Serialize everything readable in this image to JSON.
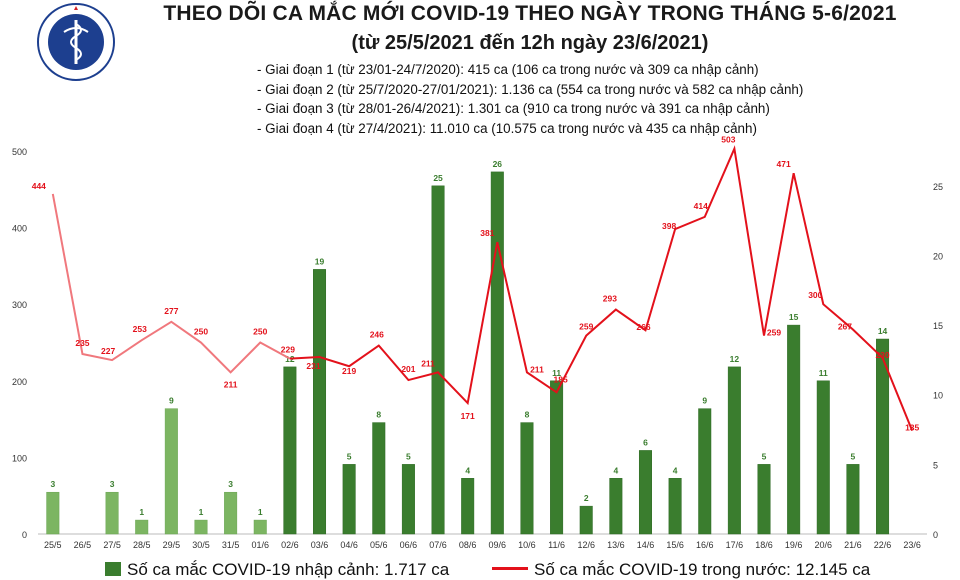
{
  "header": {
    "title_line1": "THEO DÕI CA MẮC MỚI COVID-19 THEO NGÀY TRONG THÁNG 5-6/2021",
    "title_line2": "(từ 25/5/2021 đến 12h ngày 23/6/2021)",
    "logo_text_top": "BỘ Y TẾ",
    "logo_text_bottom": "MINISTRY OF HEALTH"
  },
  "phases": [
    "- Giai đoạn 1 (từ 23/01-24/7/2020): 415 ca (106 ca trong nước và 309 ca nhập cảnh)",
    "- Giai đoạn 2 (từ 25/7/2020-27/01/2021): 1.136 ca (554 ca trong nước và 582 ca nhập cảnh)",
    "- Giai đoạn 3 (từ 28/01-26/4/2021): 1.301 ca (910 ca trong nước và 391 ca nhập cảnh)",
    "- Giai đoạn 4 (từ 27/4/2021): 11.010 ca (10.575 ca trong nước và 435 ca nhập cảnh)"
  ],
  "legend": {
    "bar_label": "Số ca mắc COVID-19 nhập cảnh: 1.717 ca",
    "line_label": "Số ca mắc COVID-19 trong nước: 12.145 ca"
  },
  "colors": {
    "bar": "#3a7d2e",
    "bar_light": "#7cb562",
    "line": "#e3111b",
    "line_light": "#f0787d",
    "axis_text": "#333333"
  },
  "chart_data": {
    "type": "bar",
    "categories": [
      "25/5",
      "26/5",
      "27/5",
      "28/5",
      "29/5",
      "30/5",
      "31/5",
      "01/6",
      "02/6",
      "03/6",
      "04/6",
      "05/6",
      "06/6",
      "07/6",
      "08/6",
      "09/6",
      "10/6",
      "11/6",
      "12/6",
      "13/6",
      "14/6",
      "15/6",
      "16/6",
      "17/6",
      "18/6",
      "19/6",
      "20/6",
      "21/6",
      "22/6",
      "23/6"
    ],
    "series": [
      {
        "name": "Số ca mắc COVID-19 nhập cảnh: 1.717 ca",
        "type": "bar",
        "axis": "right",
        "values": [
          3,
          0,
          3,
          1,
          9,
          1,
          3,
          1,
          12,
          19,
          5,
          8,
          5,
          25,
          4,
          26,
          8,
          11,
          2,
          4,
          6,
          4,
          9,
          12,
          5,
          15,
          11,
          5,
          14,
          0
        ]
      },
      {
        "name": "Số ca mắc COVID-19 trong nước: 12.145 ca",
        "type": "line",
        "axis": "left",
        "values": [
          444,
          235,
          227,
          253,
          277,
          250,
          211,
          250,
          229,
          231,
          219,
          246,
          201,
          211,
          171,
          381,
          211,
          185,
          259,
          293,
          266,
          398,
          414,
          503,
          259,
          471,
          300,
          267,
          230,
          135
        ]
      }
    ],
    "yleft": {
      "min": 0,
      "max": 500,
      "ticks": [
        0,
        100,
        200,
        300,
        400,
        500
      ]
    },
    "yright": {
      "min": 0,
      "max": 27.5,
      "ticks": [
        0,
        5,
        10,
        15,
        20,
        25
      ]
    },
    "bar_labels_hidden_for_zero": true,
    "grid": false
  }
}
